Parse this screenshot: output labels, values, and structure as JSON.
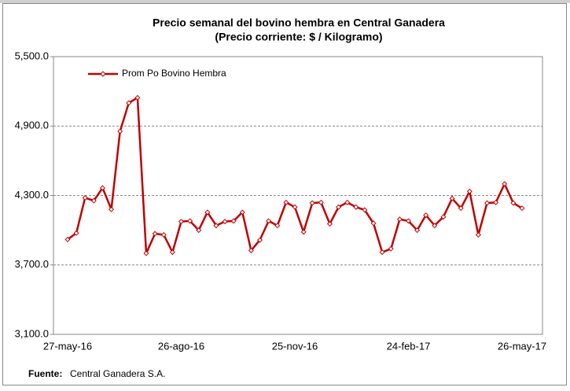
{
  "chart_data": {
    "type": "line",
    "title": "Precio semanal del bovino  hembra en Central Ganadera",
    "subtitle": "(Precio corriente: $ / Kilogramo)",
    "categories": [
      "27-may-16",
      null,
      null,
      null,
      null,
      null,
      null,
      null,
      null,
      null,
      null,
      null,
      null,
      "26-ago-16",
      null,
      null,
      null,
      null,
      null,
      null,
      null,
      null,
      null,
      null,
      null,
      null,
      "25-nov-16",
      null,
      null,
      null,
      null,
      null,
      null,
      null,
      null,
      null,
      null,
      null,
      null,
      "24-feb-17",
      null,
      null,
      null,
      null,
      null,
      null,
      null,
      null,
      null,
      null,
      null,
      null,
      "26-may-17"
    ],
    "series": [
      {
        "name": "Prom Po Bovino Hembra",
        "color": "#c00000",
        "values": [
          3920,
          3975,
          4280,
          4255,
          4365,
          4180,
          4855,
          5100,
          5145,
          3800,
          3970,
          3960,
          3810,
          4075,
          4080,
          4000,
          4155,
          4040,
          4075,
          4080,
          4155,
          3825,
          3915,
          4080,
          4040,
          4240,
          4200,
          3985,
          4235,
          4240,
          4055,
          4200,
          4240,
          4200,
          4175,
          4060,
          3810,
          3840,
          4095,
          4080,
          4000,
          4130,
          4040,
          4115,
          4275,
          4190,
          4335,
          3960,
          4235,
          4240,
          4400,
          4235,
          4190
        ]
      }
    ],
    "ylim": [
      3100,
      5500
    ],
    "yticks": [
      {
        "value": 3100,
        "label": "3,100.0"
      },
      {
        "value": 3700,
        "label": "3,700.0"
      },
      {
        "value": 4300,
        "label": "4,300.0"
      },
      {
        "value": 4900,
        "label": "4,900.0"
      },
      {
        "value": 5500,
        "label": "5,500.0"
      }
    ],
    "grid": true,
    "legend": "top-left",
    "source": {
      "label": "Fuente:",
      "text": "Central Ganadera S.A."
    }
  }
}
